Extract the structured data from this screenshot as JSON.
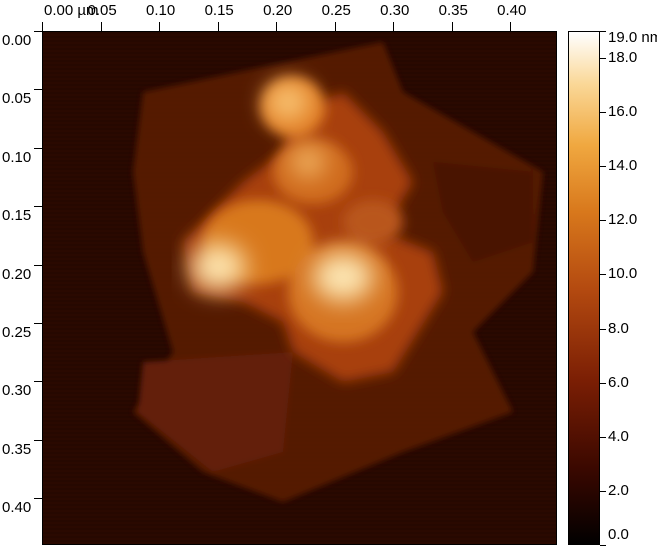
{
  "image": {
    "description_icon": "afm-height-map",
    "x_axis": {
      "unit": "µm",
      "ticks": [
        {
          "label": "0.00 µm",
          "value": 0.0
        },
        {
          "label": "0.05",
          "value": 0.05
        },
        {
          "label": "0.10",
          "value": 0.1
        },
        {
          "label": "0.15",
          "value": 0.15
        },
        {
          "label": "0.20",
          "value": 0.2
        },
        {
          "label": "0.25",
          "value": 0.25
        },
        {
          "label": "0.30",
          "value": 0.3
        },
        {
          "label": "0.35",
          "value": 0.35
        },
        {
          "label": "0.40",
          "value": 0.4
        }
      ],
      "range": [
        0,
        0.44
      ]
    },
    "y_axis": {
      "ticks": [
        {
          "label": "0.00",
          "value": 0.0
        },
        {
          "label": "0.05",
          "value": 0.05
        },
        {
          "label": "0.10",
          "value": 0.1
        },
        {
          "label": "0.15",
          "value": 0.15
        },
        {
          "label": "0.20",
          "value": 0.2
        },
        {
          "label": "0.25",
          "value": 0.25
        },
        {
          "label": "0.30",
          "value": 0.3
        },
        {
          "label": "0.35",
          "value": 0.35
        },
        {
          "label": "0.40",
          "value": 0.4
        }
      ],
      "range": [
        0,
        0.44
      ]
    },
    "colorbar": {
      "ticks": [
        {
          "label": "19.0 nm",
          "value": 19.0
        },
        {
          "label": "18.0",
          "value": 18.0
        },
        {
          "label": "16.0",
          "value": 16.0
        },
        {
          "label": "14.0",
          "value": 14.0
        },
        {
          "label": "12.0",
          "value": 12.0
        },
        {
          "label": "10.0",
          "value": 10.0
        },
        {
          "label": "8.0",
          "value": 8.0
        },
        {
          "label": "6.0",
          "value": 6.0
        },
        {
          "label": "4.0",
          "value": 4.0
        },
        {
          "label": "2.0",
          "value": 2.0
        },
        {
          "label": "0.0",
          "value": 0.0
        }
      ],
      "range": [
        0,
        19.0
      ],
      "colors": [
        "#000000",
        "#3a0800",
        "#7a1e04",
        "#b44a10",
        "#d8781c",
        "#f0a840",
        "#fad898",
        "#ffffff"
      ]
    }
  }
}
